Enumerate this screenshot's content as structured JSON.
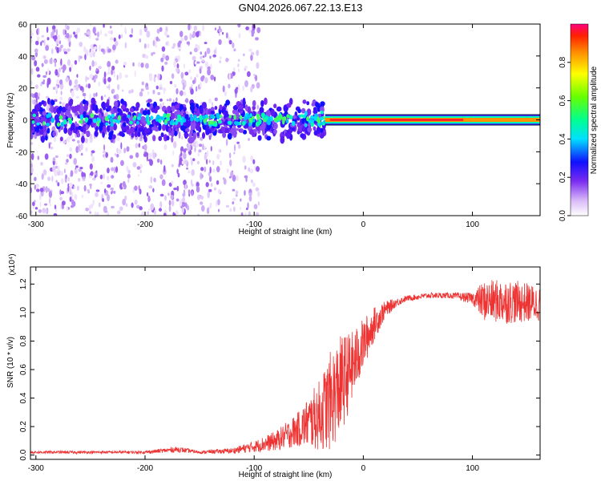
{
  "title": "GN04.2026.067.22.13.E13",
  "chart_data": [
    {
      "type": "heatmap",
      "xlabel": "Height of straight line (km)",
      "ylabel": "Frequency (Hz)",
      "xlim": [
        -305,
        162
      ],
      "ylim": [
        -60,
        60
      ],
      "xticks": [
        "-300",
        "-200",
        "-100",
        "0",
        "100"
      ],
      "xtick_values": [
        -300,
        -200,
        -100,
        0,
        100
      ],
      "yticks": [
        "60",
        "40",
        "20",
        "0",
        "-20",
        "-40",
        "-60"
      ],
      "ytick_values": [
        60,
        40,
        20,
        0,
        -20,
        -40,
        -60
      ],
      "colorbar": {
        "label": "Normalized spectral amplitude",
        "range": [
          0,
          1
        ],
        "ticks": [
          "0.0",
          "0.2",
          "0.4",
          "0.6",
          "0.8"
        ],
        "tick_values": [
          0.0,
          0.2,
          0.4,
          0.6,
          0.8
        ]
      },
      "features": {
        "noise_region_x": [
          -305,
          -120
        ],
        "rising_signal_x": [
          -120,
          -35
        ],
        "strong_line_x": [
          -35,
          162
        ],
        "strong_line_frequency": 0,
        "strong_line_amplitude": 1.0
      }
    },
    {
      "type": "line",
      "xlabel": "Height of straight line (km)",
      "ylabel": "SNR (10 * v/v)",
      "yscale_label": "(x10⁴)",
      "xlim": [
        -305,
        162
      ],
      "ylim": [
        -0.03,
        1.32
      ],
      "xticks": [
        "-300",
        "-200",
        "-100",
        "0",
        "100"
      ],
      "xtick_values": [
        -300,
        -200,
        -100,
        0,
        100
      ],
      "yticks": [
        "0.0",
        "0.2",
        "0.4",
        "0.6",
        "0.8",
        "1.0",
        "1.2"
      ],
      "ytick_values": [
        0.0,
        0.2,
        0.4,
        0.6,
        0.8,
        1.0,
        1.2
      ],
      "color": "#ee3333",
      "series": [
        {
          "name": "SNR",
          "x": [
            -305,
            -250,
            -200,
            -170,
            -150,
            -120,
            -100,
            -80,
            -60,
            -40,
            -30,
            -20,
            -10,
            0,
            10,
            20,
            30,
            40,
            60,
            80,
            100,
            110,
            130,
            150,
            162
          ],
          "values": [
            0.02,
            0.02,
            0.02,
            0.04,
            0.02,
            0.03,
            0.06,
            0.1,
            0.18,
            0.28,
            0.38,
            0.5,
            0.62,
            0.78,
            0.92,
            1.02,
            1.07,
            1.1,
            1.12,
            1.12,
            1.1,
            1.08,
            1.08,
            1.07,
            1.06
          ],
          "noise_amplitude": [
            0.01,
            0.01,
            0.01,
            0.02,
            0.01,
            0.02,
            0.04,
            0.07,
            0.12,
            0.25,
            0.35,
            0.35,
            0.25,
            0.18,
            0.12,
            0.06,
            0.03,
            0.02,
            0.02,
            0.02,
            0.04,
            0.14,
            0.16,
            0.14,
            0.12
          ]
        }
      ]
    }
  ]
}
